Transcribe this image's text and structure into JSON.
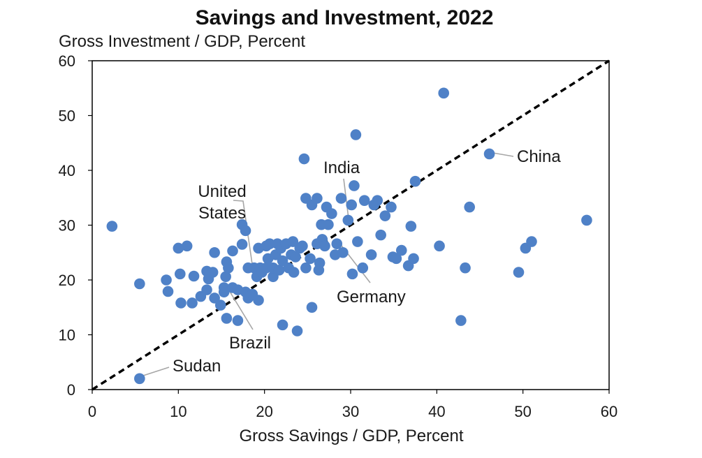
{
  "chart_data": {
    "type": "scatter",
    "title": "Savings and Investment, 2022",
    "ylabel": "Gross Investment / GDP, Percent",
    "xlabel": "Gross Savings / GDP, Percent",
    "xlim": [
      0,
      60
    ],
    "ylim": [
      0,
      60
    ],
    "xticks": [
      0,
      10,
      20,
      30,
      40,
      50,
      60
    ],
    "yticks": [
      0,
      10,
      20,
      30,
      40,
      50,
      60
    ],
    "grid": false,
    "point_color": "#4f81c7",
    "reference_line": {
      "style": "dashed",
      "color": "#000000",
      "from": [
        0,
        0
      ],
      "to": [
        60,
        60
      ]
    },
    "points": [
      {
        "x": 2.3,
        "y": 29.8
      },
      {
        "x": 5.5,
        "y": 2.0
      },
      {
        "x": 5.5,
        "y": 19.3
      },
      {
        "x": 8.6,
        "y": 20.0
      },
      {
        "x": 8.8,
        "y": 17.9
      },
      {
        "x": 10.0,
        "y": 25.8
      },
      {
        "x": 10.2,
        "y": 21.1
      },
      {
        "x": 10.3,
        "y": 15.8
      },
      {
        "x": 11.0,
        "y": 26.2
      },
      {
        "x": 11.6,
        "y": 15.8
      },
      {
        "x": 11.8,
        "y": 20.7
      },
      {
        "x": 12.6,
        "y": 17.0
      },
      {
        "x": 13.3,
        "y": 18.2
      },
      {
        "x": 13.3,
        "y": 21.6
      },
      {
        "x": 13.5,
        "y": 20.2
      },
      {
        "x": 14.0,
        "y": 21.4
      },
      {
        "x": 14.2,
        "y": 16.7
      },
      {
        "x": 14.2,
        "y": 25.0
      },
      {
        "x": 14.9,
        "y": 15.4
      },
      {
        "x": 15.3,
        "y": 17.8
      },
      {
        "x": 15.3,
        "y": 18.6
      },
      {
        "x": 15.5,
        "y": 20.6
      },
      {
        "x": 15.6,
        "y": 13.0
      },
      {
        "x": 15.6,
        "y": 23.3
      },
      {
        "x": 15.8,
        "y": 22.2
      },
      {
        "x": 16.3,
        "y": 18.6
      },
      {
        "x": 16.3,
        "y": 25.3
      },
      {
        "x": 16.9,
        "y": 12.6
      },
      {
        "x": 16.9,
        "y": 18.2
      },
      {
        "x": 17.4,
        "y": 30.1
      },
      {
        "x": 17.4,
        "y": 26.5
      },
      {
        "x": 17.8,
        "y": 29.0
      },
      {
        "x": 17.8,
        "y": 17.8
      },
      {
        "x": 18.1,
        "y": 16.7
      },
      {
        "x": 18.1,
        "y": 22.2
      },
      {
        "x": 18.6,
        "y": 17.4
      },
      {
        "x": 18.8,
        "y": 22.2
      },
      {
        "x": 19.1,
        "y": 20.6
      },
      {
        "x": 19.3,
        "y": 16.3
      },
      {
        "x": 19.3,
        "y": 25.8
      },
      {
        "x": 19.5,
        "y": 22.2
      },
      {
        "x": 19.7,
        "y": 21.4
      },
      {
        "x": 20.2,
        "y": 22.2
      },
      {
        "x": 20.2,
        "y": 26.2
      },
      {
        "x": 20.4,
        "y": 23.9
      },
      {
        "x": 20.6,
        "y": 26.6
      },
      {
        "x": 21.0,
        "y": 20.6
      },
      {
        "x": 21.0,
        "y": 22.2
      },
      {
        "x": 21.3,
        "y": 24.6
      },
      {
        "x": 21.5,
        "y": 26.6
      },
      {
        "x": 21.7,
        "y": 21.8
      },
      {
        "x": 21.9,
        "y": 25.8
      },
      {
        "x": 22.1,
        "y": 11.8
      },
      {
        "x": 22.1,
        "y": 23.5
      },
      {
        "x": 22.5,
        "y": 26.6
      },
      {
        "x": 22.8,
        "y": 22.2
      },
      {
        "x": 23.1,
        "y": 24.6
      },
      {
        "x": 23.3,
        "y": 27.0
      },
      {
        "x": 23.4,
        "y": 21.4
      },
      {
        "x": 23.6,
        "y": 24.2
      },
      {
        "x": 23.8,
        "y": 10.7
      },
      {
        "x": 24.1,
        "y": 25.8
      },
      {
        "x": 24.4,
        "y": 26.2
      },
      {
        "x": 24.6,
        "y": 42.1
      },
      {
        "x": 24.8,
        "y": 34.9
      },
      {
        "x": 24.8,
        "y": 22.2
      },
      {
        "x": 25.3,
        "y": 23.9
      },
      {
        "x": 25.5,
        "y": 15.0
      },
      {
        "x": 25.5,
        "y": 33.7
      },
      {
        "x": 26.1,
        "y": 34.9
      },
      {
        "x": 26.1,
        "y": 26.6
      },
      {
        "x": 26.3,
        "y": 21.8
      },
      {
        "x": 26.4,
        "y": 23.1
      },
      {
        "x": 26.6,
        "y": 30.1
      },
      {
        "x": 26.7,
        "y": 27.4
      },
      {
        "x": 27.0,
        "y": 26.2
      },
      {
        "x": 27.2,
        "y": 33.3
      },
      {
        "x": 27.4,
        "y": 30.1
      },
      {
        "x": 27.8,
        "y": 32.1
      },
      {
        "x": 28.2,
        "y": 24.6
      },
      {
        "x": 28.4,
        "y": 26.6
      },
      {
        "x": 28.9,
        "y": 34.9
      },
      {
        "x": 29.1,
        "y": 25.0
      },
      {
        "x": 29.7,
        "y": 30.9
      },
      {
        "x": 30.1,
        "y": 33.7
      },
      {
        "x": 30.2,
        "y": 21.1
      },
      {
        "x": 30.4,
        "y": 37.2
      },
      {
        "x": 30.6,
        "y": 46.5
      },
      {
        "x": 30.8,
        "y": 27.0
      },
      {
        "x": 31.4,
        "y": 22.2
      },
      {
        "x": 31.6,
        "y": 34.5
      },
      {
        "x": 32.4,
        "y": 24.6
      },
      {
        "x": 32.7,
        "y": 33.7
      },
      {
        "x": 33.1,
        "y": 34.5
      },
      {
        "x": 33.5,
        "y": 28.2
      },
      {
        "x": 34.0,
        "y": 31.7
      },
      {
        "x": 34.7,
        "y": 33.3
      },
      {
        "x": 34.9,
        "y": 24.2
      },
      {
        "x": 35.3,
        "y": 23.9
      },
      {
        "x": 35.9,
        "y": 25.4
      },
      {
        "x": 36.7,
        "y": 22.6
      },
      {
        "x": 37.0,
        "y": 29.8
      },
      {
        "x": 37.3,
        "y": 23.9
      },
      {
        "x": 37.5,
        "y": 38.0
      },
      {
        "x": 40.3,
        "y": 26.2
      },
      {
        "x": 40.8,
        "y": 54.1
      },
      {
        "x": 42.8,
        "y": 12.6
      },
      {
        "x": 43.3,
        "y": 22.2
      },
      {
        "x": 43.8,
        "y": 33.3
      },
      {
        "x": 46.1,
        "y": 43.0
      },
      {
        "x": 49.5,
        "y": 21.4
      },
      {
        "x": 50.3,
        "y": 25.8
      },
      {
        "x": 51.0,
        "y": 27.0
      },
      {
        "x": 57.4,
        "y": 30.9
      }
    ],
    "annotations": [
      {
        "lines": [
          "China"
        ],
        "x": 46.1,
        "y": 43.0
      },
      {
        "lines": [
          "India"
        ],
        "x": 29.7,
        "y": 30.9
      },
      {
        "lines": [
          "United",
          "States"
        ],
        "x": 18.8,
        "y": 22.2
      },
      {
        "lines": [
          "Germany"
        ],
        "x": 28.4,
        "y": 26.6
      },
      {
        "lines": [
          "Brazil"
        ],
        "x": 16.3,
        "y": 18.6
      },
      {
        "lines": [
          "Sudan"
        ],
        "x": 5.5,
        "y": 2.0
      }
    ]
  }
}
